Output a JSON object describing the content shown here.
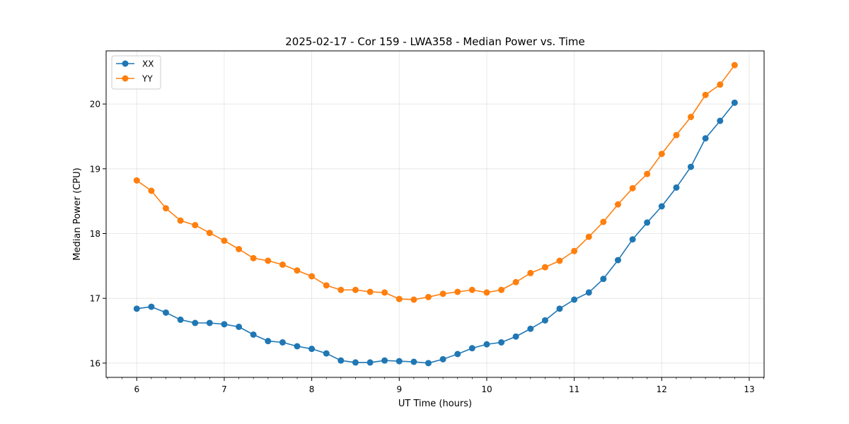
{
  "chart_data": {
    "type": "line",
    "title": "2025-02-17 - Cor 159 - LWA358 - Median Power vs. Time",
    "xlabel": "UT Time (hours)",
    "ylabel": "Median Power (CPU)",
    "xlim": [
      5.65,
      13.17
    ],
    "ylim": [
      15.78,
      20.82
    ],
    "xticks": [
      6,
      7,
      8,
      9,
      10,
      11,
      12,
      13
    ],
    "xtick_labels": [
      "6",
      "7",
      "8",
      "9",
      "10",
      "11",
      "12",
      "13"
    ],
    "yticks": [
      16,
      17,
      18,
      19,
      20
    ],
    "ytick_labels": [
      "16",
      "17",
      "18",
      "19",
      "20"
    ],
    "grid": true,
    "legend_position": "upper-left",
    "x": [
      6.0,
      6.167,
      6.333,
      6.5,
      6.667,
      6.833,
      7.0,
      7.167,
      7.333,
      7.5,
      7.667,
      7.833,
      8.0,
      8.167,
      8.333,
      8.5,
      8.667,
      8.833,
      9.0,
      9.167,
      9.333,
      9.5,
      9.667,
      9.833,
      10.0,
      10.167,
      10.333,
      10.5,
      10.667,
      10.833,
      11.0,
      11.167,
      11.333,
      11.5,
      11.667,
      11.833,
      12.0,
      12.167,
      12.333,
      12.5,
      12.667,
      12.833
    ],
    "series": [
      {
        "name": "XX",
        "color": "#1f77b4",
        "values": [
          16.84,
          16.87,
          16.78,
          16.67,
          16.62,
          16.62,
          16.6,
          16.56,
          16.44,
          16.34,
          16.32,
          16.26,
          16.22,
          16.15,
          16.04,
          16.01,
          16.01,
          16.04,
          16.03,
          16.02,
          16.0,
          16.06,
          16.14,
          16.23,
          16.29,
          16.32,
          16.41,
          16.53,
          16.66,
          16.84,
          16.98,
          17.09,
          17.3,
          17.59,
          17.91,
          18.17,
          18.42,
          18.71,
          19.03,
          19.47,
          19.74,
          20.02
        ]
      },
      {
        "name": "YY",
        "color": "#ff7f0e",
        "values": [
          18.82,
          18.66,
          18.39,
          18.2,
          18.13,
          18.01,
          17.89,
          17.76,
          17.62,
          17.58,
          17.52,
          17.43,
          17.34,
          17.2,
          17.13,
          17.13,
          17.1,
          17.09,
          16.99,
          16.98,
          17.02,
          17.07,
          17.1,
          17.13,
          17.09,
          17.13,
          17.25,
          17.39,
          17.48,
          17.58,
          17.73,
          17.95,
          18.18,
          18.45,
          18.7,
          18.92,
          19.23,
          19.52,
          19.8,
          20.14,
          20.3,
          20.6
        ]
      }
    ]
  }
}
